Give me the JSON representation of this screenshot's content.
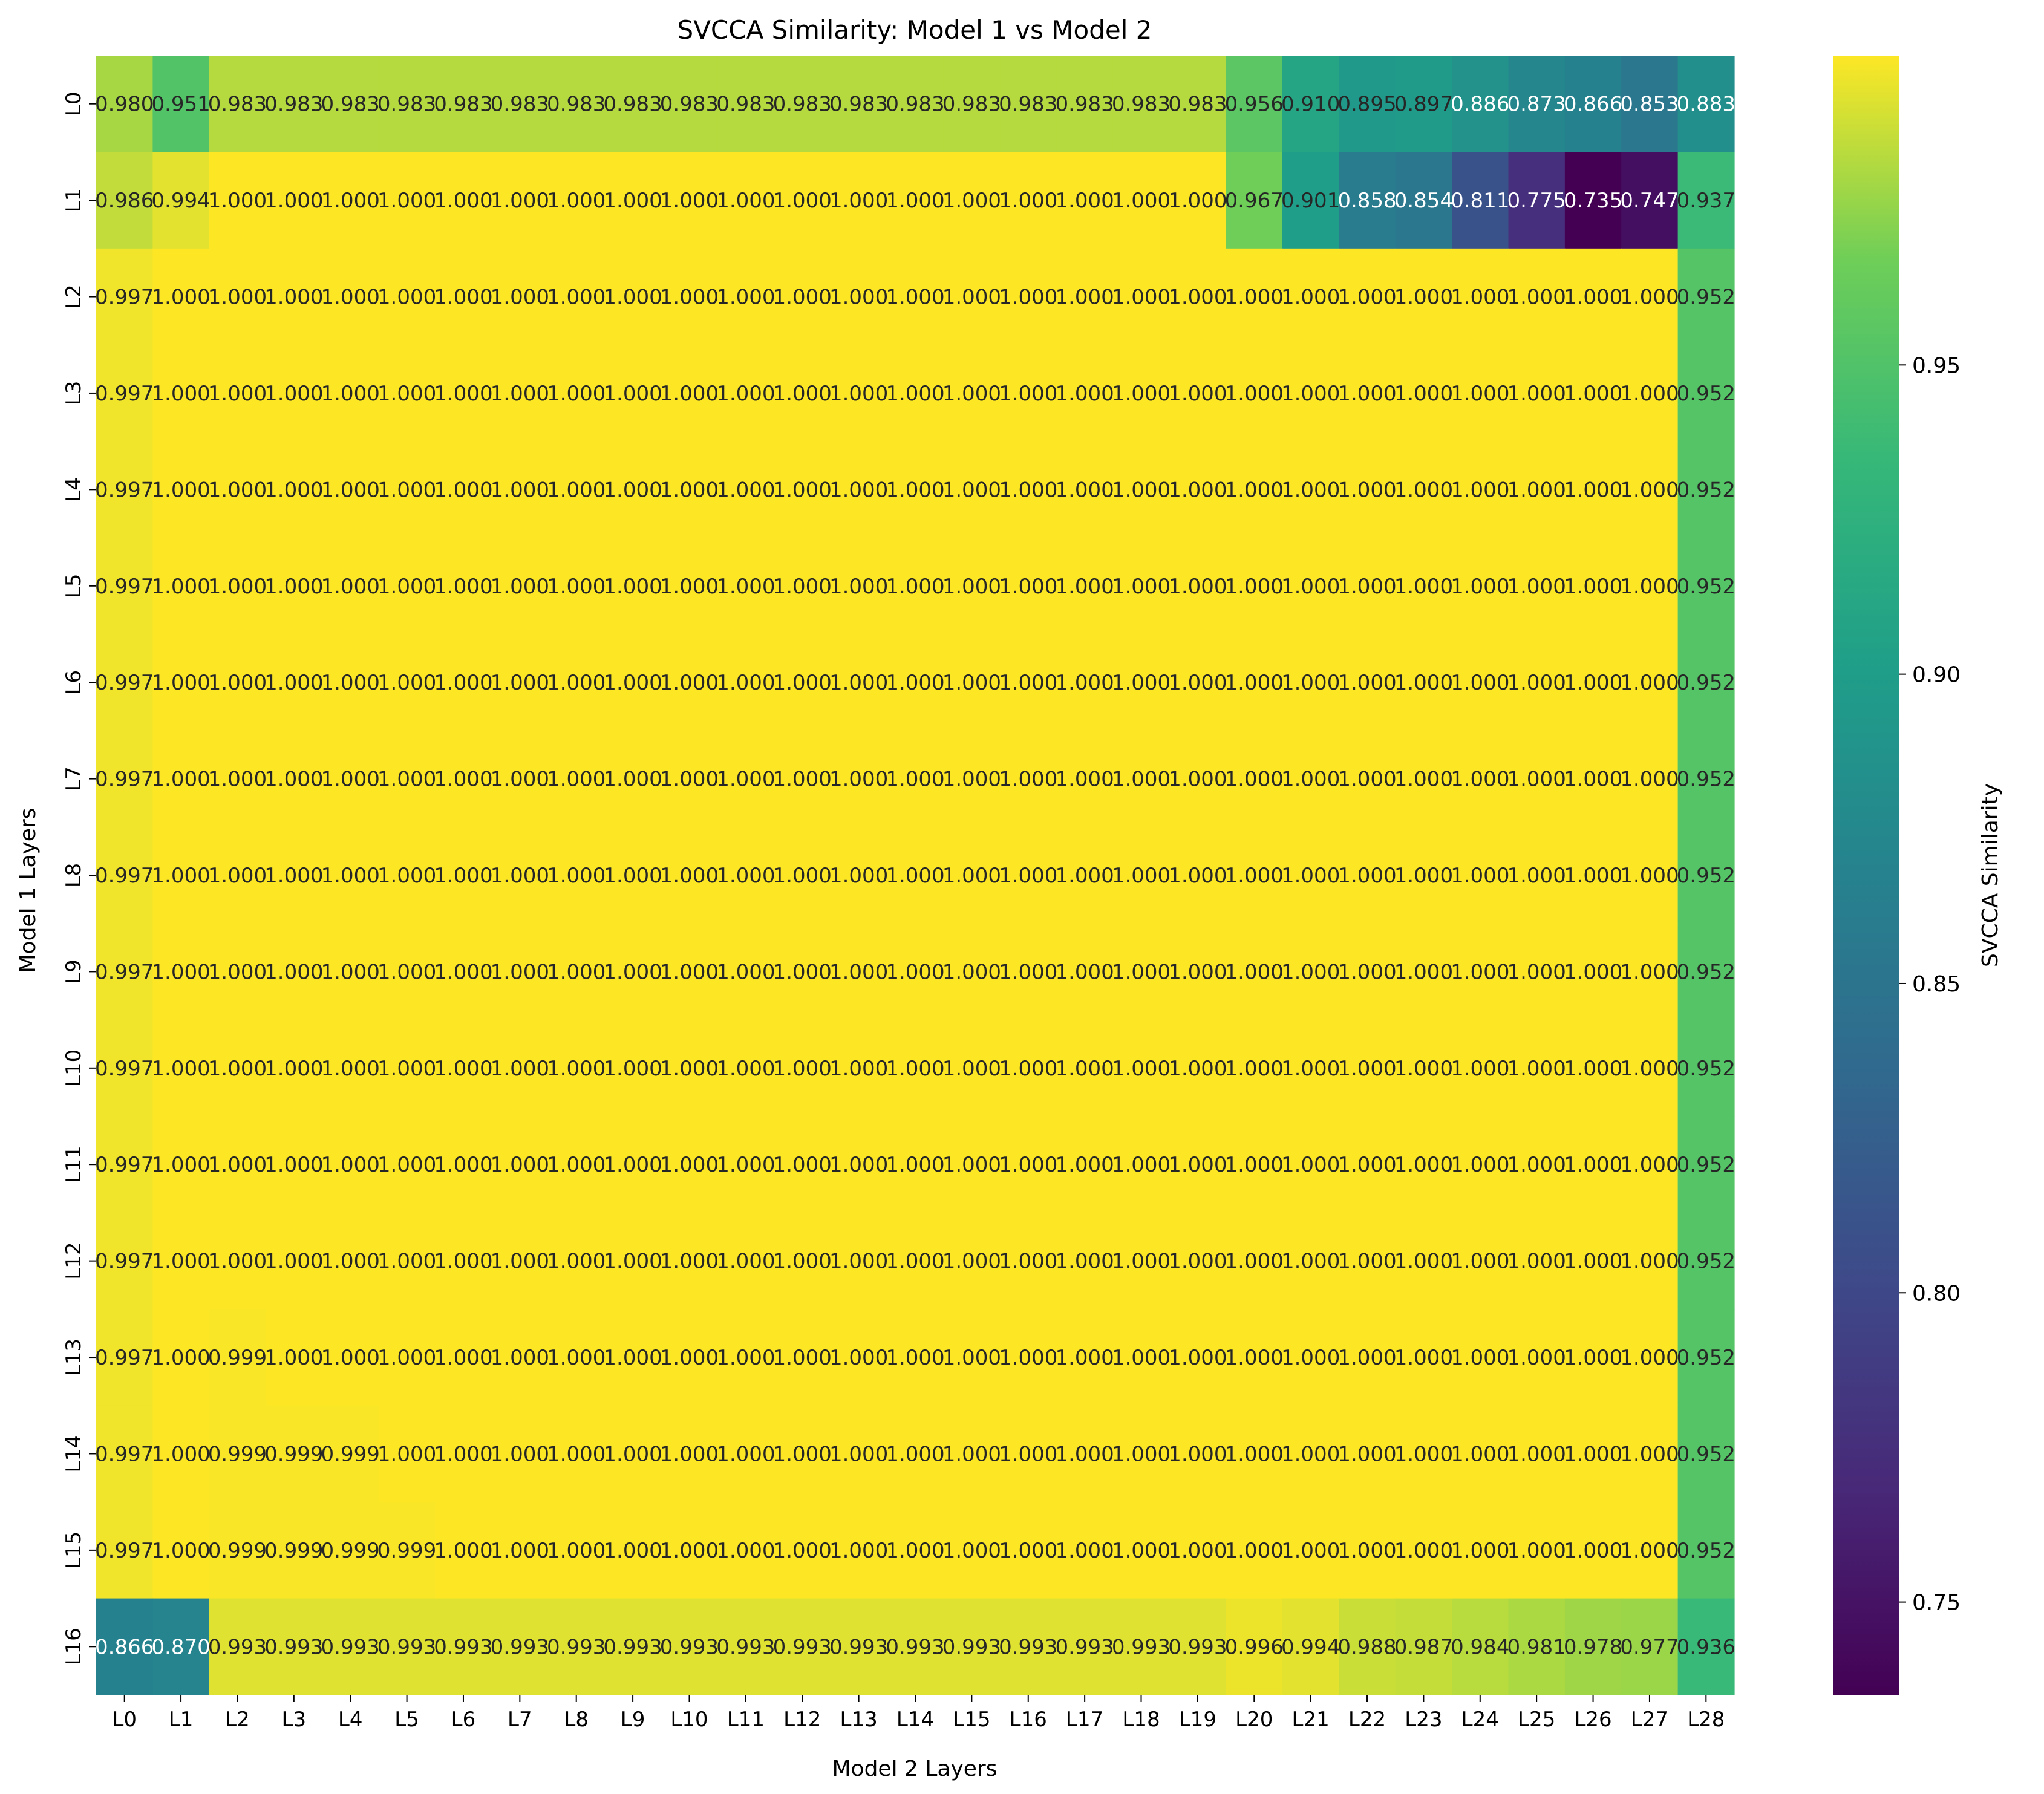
{
  "chart_data": {
    "type": "heatmap",
    "title": "SVCCA Similarity: Model 1 vs Model 2",
    "xlabel": "Model 2 Layers",
    "ylabel": "Model 1 Layers",
    "colorbar_label": "SVCCA Similarity",
    "colormap": "viridis",
    "vmin": 0.735,
    "vmax": 1.0,
    "colorbar_ticks": [
      "0.75",
      "0.80",
      "0.85",
      "0.90",
      "0.95"
    ],
    "x_categories": [
      "L0",
      "L1",
      "L2",
      "L3",
      "L4",
      "L5",
      "L6",
      "L7",
      "L8",
      "L9",
      "L10",
      "L11",
      "L12",
      "L13",
      "L14",
      "L15",
      "L16",
      "L17",
      "L18",
      "L19",
      "L20",
      "L21",
      "L22",
      "L23",
      "L24",
      "L25",
      "L26",
      "L27",
      "L28"
    ],
    "y_categories": [
      "L0",
      "L1",
      "L2",
      "L3",
      "L4",
      "L5",
      "L6",
      "L7",
      "L8",
      "L9",
      "L10",
      "L11",
      "L12",
      "L13",
      "L14",
      "L15",
      "L16"
    ],
    "values": [
      [
        0.98,
        0.951,
        0.983,
        0.983,
        0.983,
        0.983,
        0.983,
        0.983,
        0.983,
        0.983,
        0.983,
        0.983,
        0.983,
        0.983,
        0.983,
        0.983,
        0.983,
        0.983,
        0.983,
        0.983,
        0.956,
        0.91,
        0.895,
        0.897,
        0.886,
        0.873,
        0.866,
        0.853,
        0.883
      ],
      [
        0.986,
        0.994,
        1.0,
        1.0,
        1.0,
        1.0,
        1.0,
        1.0,
        1.0,
        1.0,
        1.0,
        1.0,
        1.0,
        1.0,
        1.0,
        1.0,
        1.0,
        1.0,
        1.0,
        1.0,
        0.967,
        0.901,
        0.858,
        0.854,
        0.811,
        0.775,
        0.735,
        0.747,
        0.937
      ],
      [
        0.997,
        1.0,
        1.0,
        1.0,
        1.0,
        1.0,
        1.0,
        1.0,
        1.0,
        1.0,
        1.0,
        1.0,
        1.0,
        1.0,
        1.0,
        1.0,
        1.0,
        1.0,
        1.0,
        1.0,
        1.0,
        1.0,
        1.0,
        1.0,
        1.0,
        1.0,
        1.0,
        1.0,
        0.952
      ],
      [
        0.997,
        1.0,
        1.0,
        1.0,
        1.0,
        1.0,
        1.0,
        1.0,
        1.0,
        1.0,
        1.0,
        1.0,
        1.0,
        1.0,
        1.0,
        1.0,
        1.0,
        1.0,
        1.0,
        1.0,
        1.0,
        1.0,
        1.0,
        1.0,
        1.0,
        1.0,
        1.0,
        1.0,
        0.952
      ],
      [
        0.997,
        1.0,
        1.0,
        1.0,
        1.0,
        1.0,
        1.0,
        1.0,
        1.0,
        1.0,
        1.0,
        1.0,
        1.0,
        1.0,
        1.0,
        1.0,
        1.0,
        1.0,
        1.0,
        1.0,
        1.0,
        1.0,
        1.0,
        1.0,
        1.0,
        1.0,
        1.0,
        1.0,
        0.952
      ],
      [
        0.997,
        1.0,
        1.0,
        1.0,
        1.0,
        1.0,
        1.0,
        1.0,
        1.0,
        1.0,
        1.0,
        1.0,
        1.0,
        1.0,
        1.0,
        1.0,
        1.0,
        1.0,
        1.0,
        1.0,
        1.0,
        1.0,
        1.0,
        1.0,
        1.0,
        1.0,
        1.0,
        1.0,
        0.952
      ],
      [
        0.997,
        1.0,
        1.0,
        1.0,
        1.0,
        1.0,
        1.0,
        1.0,
        1.0,
        1.0,
        1.0,
        1.0,
        1.0,
        1.0,
        1.0,
        1.0,
        1.0,
        1.0,
        1.0,
        1.0,
        1.0,
        1.0,
        1.0,
        1.0,
        1.0,
        1.0,
        1.0,
        1.0,
        0.952
      ],
      [
        0.997,
        1.0,
        1.0,
        1.0,
        1.0,
        1.0,
        1.0,
        1.0,
        1.0,
        1.0,
        1.0,
        1.0,
        1.0,
        1.0,
        1.0,
        1.0,
        1.0,
        1.0,
        1.0,
        1.0,
        1.0,
        1.0,
        1.0,
        1.0,
        1.0,
        1.0,
        1.0,
        1.0,
        0.952
      ],
      [
        0.997,
        1.0,
        1.0,
        1.0,
        1.0,
        1.0,
        1.0,
        1.0,
        1.0,
        1.0,
        1.0,
        1.0,
        1.0,
        1.0,
        1.0,
        1.0,
        1.0,
        1.0,
        1.0,
        1.0,
        1.0,
        1.0,
        1.0,
        1.0,
        1.0,
        1.0,
        1.0,
        1.0,
        0.952
      ],
      [
        0.997,
        1.0,
        1.0,
        1.0,
        1.0,
        1.0,
        1.0,
        1.0,
        1.0,
        1.0,
        1.0,
        1.0,
        1.0,
        1.0,
        1.0,
        1.0,
        1.0,
        1.0,
        1.0,
        1.0,
        1.0,
        1.0,
        1.0,
        1.0,
        1.0,
        1.0,
        1.0,
        1.0,
        0.952
      ],
      [
        0.997,
        1.0,
        1.0,
        1.0,
        1.0,
        1.0,
        1.0,
        1.0,
        1.0,
        1.0,
        1.0,
        1.0,
        1.0,
        1.0,
        1.0,
        1.0,
        1.0,
        1.0,
        1.0,
        1.0,
        1.0,
        1.0,
        1.0,
        1.0,
        1.0,
        1.0,
        1.0,
        1.0,
        0.952
      ],
      [
        0.997,
        1.0,
        1.0,
        1.0,
        1.0,
        1.0,
        1.0,
        1.0,
        1.0,
        1.0,
        1.0,
        1.0,
        1.0,
        1.0,
        1.0,
        1.0,
        1.0,
        1.0,
        1.0,
        1.0,
        1.0,
        1.0,
        1.0,
        1.0,
        1.0,
        1.0,
        1.0,
        1.0,
        0.952
      ],
      [
        0.997,
        1.0,
        1.0,
        1.0,
        1.0,
        1.0,
        1.0,
        1.0,
        1.0,
        1.0,
        1.0,
        1.0,
        1.0,
        1.0,
        1.0,
        1.0,
        1.0,
        1.0,
        1.0,
        1.0,
        1.0,
        1.0,
        1.0,
        1.0,
        1.0,
        1.0,
        1.0,
        1.0,
        0.952
      ],
      [
        0.997,
        1.0,
        0.999,
        1.0,
        1.0,
        1.0,
        1.0,
        1.0,
        1.0,
        1.0,
        1.0,
        1.0,
        1.0,
        1.0,
        1.0,
        1.0,
        1.0,
        1.0,
        1.0,
        1.0,
        1.0,
        1.0,
        1.0,
        1.0,
        1.0,
        1.0,
        1.0,
        1.0,
        0.952
      ],
      [
        0.997,
        1.0,
        0.999,
        0.999,
        0.999,
        1.0,
        1.0,
        1.0,
        1.0,
        1.0,
        1.0,
        1.0,
        1.0,
        1.0,
        1.0,
        1.0,
        1.0,
        1.0,
        1.0,
        1.0,
        1.0,
        1.0,
        1.0,
        1.0,
        1.0,
        1.0,
        1.0,
        1.0,
        0.952
      ],
      [
        0.997,
        1.0,
        0.999,
        0.999,
        0.999,
        0.999,
        1.0,
        1.0,
        1.0,
        1.0,
        1.0,
        1.0,
        1.0,
        1.0,
        1.0,
        1.0,
        1.0,
        1.0,
        1.0,
        1.0,
        1.0,
        1.0,
        1.0,
        1.0,
        1.0,
        1.0,
        1.0,
        1.0,
        0.952
      ],
      [
        0.866,
        0.87,
        0.993,
        0.993,
        0.993,
        0.993,
        0.993,
        0.993,
        0.993,
        0.993,
        0.993,
        0.993,
        0.993,
        0.993,
        0.993,
        0.993,
        0.993,
        0.993,
        0.993,
        0.993,
        0.996,
        0.994,
        0.988,
        0.987,
        0.984,
        0.981,
        0.978,
        0.977,
        0.936
      ]
    ]
  }
}
